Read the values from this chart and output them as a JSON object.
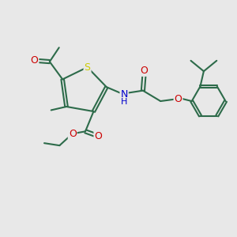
{
  "bg_color": "#e8e8e8",
  "bond_color": "#2d6b4a",
  "bond_lw": 1.5,
  "S_color": "#cccc00",
  "N_color": "#0000cc",
  "O_color": "#cc0000",
  "dbo": 0.06,
  "fig_size": [
    3.0,
    3.0
  ],
  "xlim": [
    0,
    10
  ],
  "ylim": [
    0,
    10
  ]
}
